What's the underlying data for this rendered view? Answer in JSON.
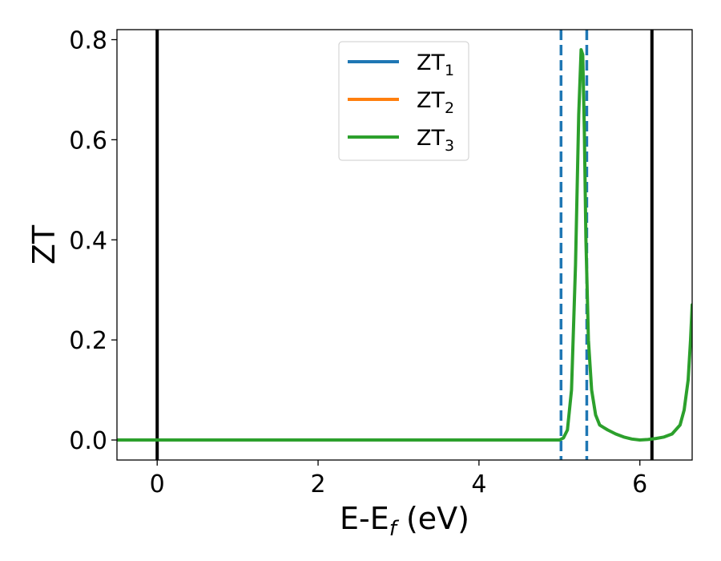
{
  "chart_data": {
    "type": "line",
    "xlabel": {
      "main": "E-E",
      "sub": "f",
      "rest": " (eV)"
    },
    "ylabel": "ZT",
    "xlim": [
      -0.5,
      6.65
    ],
    "ylim": [
      -0.04,
      0.82
    ],
    "xticks": [
      0,
      2,
      4,
      6
    ],
    "xtick_labels": [
      "0",
      "2",
      "4",
      "6"
    ],
    "yticks": [
      0.0,
      0.2,
      0.4,
      0.6,
      0.8
    ],
    "ytick_labels": [
      "0.0",
      "0.2",
      "0.4",
      "0.6",
      "0.8"
    ],
    "grid": false,
    "legend_position": "top-center",
    "vlines": [
      {
        "x": 0.0,
        "style": "solid",
        "color": "#000000"
      },
      {
        "x": 6.15,
        "style": "solid",
        "color": "#000000"
      },
      {
        "x": 5.02,
        "style": "dashed",
        "color": "#1f77b4"
      },
      {
        "x": 5.34,
        "style": "dashed",
        "color": "#1f77b4"
      }
    ],
    "series": [
      {
        "name": {
          "main": "ZT",
          "sub": "1"
        },
        "color": "#1f77b4",
        "x": [],
        "y": []
      },
      {
        "name": {
          "main": "ZT",
          "sub": "2"
        },
        "color": "#ff7f0e",
        "x": [],
        "y": []
      },
      {
        "name": {
          "main": "ZT",
          "sub": "3"
        },
        "color": "#2ca02c",
        "x": [
          -0.5,
          5.0,
          5.05,
          5.1,
          5.15,
          5.2,
          5.24,
          5.27,
          5.29,
          5.31,
          5.33,
          5.36,
          5.4,
          5.45,
          5.5,
          5.55,
          5.6,
          5.7,
          5.8,
          5.9,
          6.0,
          6.1,
          6.2,
          6.3,
          6.4,
          6.5,
          6.55,
          6.6,
          6.63,
          6.65
        ],
        "y": [
          0.0,
          0.0,
          0.004,
          0.02,
          0.1,
          0.35,
          0.65,
          0.78,
          0.77,
          0.62,
          0.4,
          0.2,
          0.1,
          0.05,
          0.03,
          0.025,
          0.02,
          0.012,
          0.006,
          0.002,
          0.0,
          0.001,
          0.003,
          0.006,
          0.012,
          0.03,
          0.06,
          0.12,
          0.2,
          0.27
        ]
      }
    ],
    "all_series_overlap": true
  }
}
